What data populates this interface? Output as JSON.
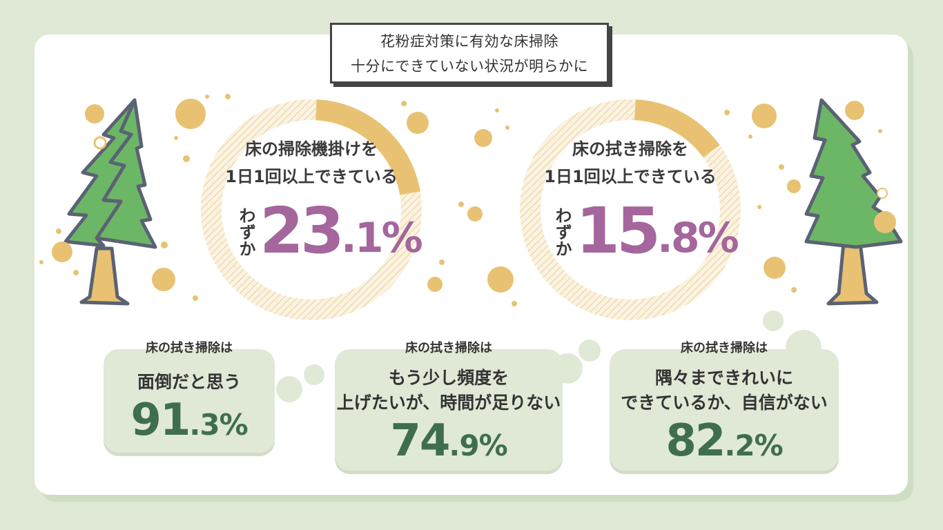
{
  "title": {
    "line1": "花粉症対策に有効な床掃除",
    "line2": "十分にできていない状況が明らかに"
  },
  "colors": {
    "accent_yellow": "#e8c272",
    "accent_purple": "#a4669c",
    "accent_green": "#3f6e4e",
    "bubble_bg": "#dfe9d6",
    "tree_green": "#6cb765"
  },
  "chart_data": [
    {
      "type": "pie",
      "label_line1": "床の掃除機掛けを",
      "label_line2": "1日1回以上できている",
      "prefix": "わずか",
      "value": 23.1,
      "value_int": "23",
      "value_dec": ".1%"
    },
    {
      "type": "pie",
      "label_line1": "床の拭き掃除を",
      "label_line2": "1日1回以上できている",
      "prefix": "わずか",
      "value": 15.8,
      "value_int": "15",
      "value_dec": ".8%"
    }
  ],
  "bubbles": [
    {
      "label": "床の拭き掃除は",
      "line1": "面倒だと思う",
      "value": 91.3,
      "value_int": "91",
      "value_dec": ".3%"
    },
    {
      "label": "床の拭き掃除は",
      "line1": "もう少し頻度を",
      "line2": "上げたいが、時間が足りない",
      "value": 74.9,
      "value_int": "74",
      "value_dec": ".9%"
    },
    {
      "label": "床の拭き掃除は",
      "line1": "隅々まできれいに",
      "line2": "できているか、自信がない",
      "value": 82.2,
      "value_int": "82",
      "value_dec": ".2%"
    }
  ]
}
